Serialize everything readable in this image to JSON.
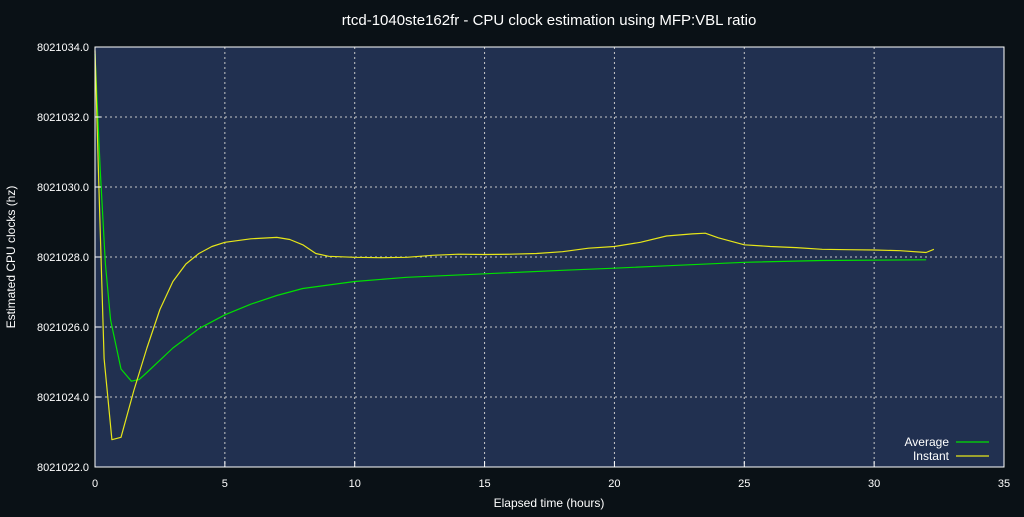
{
  "chart_data": {
    "type": "line",
    "title": "rtcd-1040ste162fr - CPU clock estimation using MFP:VBL ratio",
    "xlabel": "Elapsed time (hours)",
    "ylabel": "Estimated CPU clocks (hz)",
    "xlim": [
      0,
      35
    ],
    "ylim": [
      8021022.0,
      8021034.0
    ],
    "xticks": [
      0,
      5,
      10,
      15,
      20,
      25,
      30,
      35
    ],
    "xtick_labels": [
      "0",
      "5",
      "10",
      "15",
      "20",
      "25",
      "30",
      "35"
    ],
    "yticks": [
      8021022.0,
      8021024.0,
      8021026.0,
      8021028.0,
      8021030.0,
      8021032.0,
      8021034.0
    ],
    "ytick_labels": [
      "8021022.0",
      "8021024.0",
      "8021026.0",
      "8021028.0",
      "8021030.0",
      "8021032.0",
      "8021034.0"
    ],
    "grid": true,
    "legend_position": "bottom-right",
    "series": [
      {
        "name": "Average",
        "color": "#00e000",
        "points": [
          [
            0.0,
            8021033.8
          ],
          [
            0.2,
            8021030.5
          ],
          [
            0.4,
            8021027.8
          ],
          [
            0.6,
            8021026.2
          ],
          [
            1.0,
            8021024.8
          ],
          [
            1.4,
            8021024.45
          ],
          [
            1.7,
            8021024.5
          ],
          [
            2.0,
            8021024.7
          ],
          [
            3.0,
            8021025.4
          ],
          [
            4.0,
            8021025.95
          ],
          [
            5.0,
            8021026.35
          ],
          [
            6.0,
            8021026.65
          ],
          [
            7.0,
            8021026.9
          ],
          [
            8.0,
            8021027.1
          ],
          [
            9.0,
            8021027.2
          ],
          [
            10.0,
            8021027.3
          ],
          [
            12.0,
            8021027.42
          ],
          [
            15.0,
            8021027.52
          ],
          [
            18.0,
            8021027.62
          ],
          [
            20.0,
            8021027.68
          ],
          [
            22.0,
            8021027.75
          ],
          [
            25.0,
            8021027.85
          ],
          [
            28.0,
            8021027.9
          ],
          [
            32.0,
            8021027.92
          ]
        ]
      },
      {
        "name": "Instant",
        "color": "#e6e619",
        "points": [
          [
            0.0,
            8021033.9
          ],
          [
            0.15,
            8021030.0
          ],
          [
            0.35,
            8021025.1
          ],
          [
            0.65,
            8021022.78
          ],
          [
            1.0,
            8021022.85
          ],
          [
            1.5,
            8021024.2
          ],
          [
            2.0,
            8021025.4
          ],
          [
            2.5,
            8021026.5
          ],
          [
            3.0,
            8021027.3
          ],
          [
            3.5,
            8021027.8
          ],
          [
            4.0,
            8021028.1
          ],
          [
            4.5,
            8021028.3
          ],
          [
            5.0,
            8021028.42
          ],
          [
            6.0,
            8021028.52
          ],
          [
            7.0,
            8021028.56
          ],
          [
            7.5,
            8021028.5
          ],
          [
            8.0,
            8021028.35
          ],
          [
            8.5,
            8021028.1
          ],
          [
            9.0,
            8021028.02
          ],
          [
            10.0,
            8021027.99
          ],
          [
            11.0,
            8021027.98
          ],
          [
            12.0,
            8021027.99
          ],
          [
            13.0,
            8021028.05
          ],
          [
            14.0,
            8021028.08
          ],
          [
            15.0,
            8021028.07
          ],
          [
            16.0,
            8021028.08
          ],
          [
            17.0,
            8021028.1
          ],
          [
            18.0,
            8021028.15
          ],
          [
            19.0,
            8021028.25
          ],
          [
            20.0,
            8021028.3
          ],
          [
            21.0,
            8021028.42
          ],
          [
            22.0,
            8021028.6
          ],
          [
            23.0,
            8021028.66
          ],
          [
            23.5,
            8021028.68
          ],
          [
            24.0,
            8021028.55
          ],
          [
            25.0,
            8021028.35
          ],
          [
            26.0,
            8021028.3
          ],
          [
            27.0,
            8021028.27
          ],
          [
            28.0,
            8021028.22
          ],
          [
            29.0,
            8021028.21
          ],
          [
            30.0,
            8021028.2
          ],
          [
            31.0,
            8021028.18
          ],
          [
            32.0,
            8021028.13
          ],
          [
            32.3,
            8021028.22
          ]
        ]
      }
    ]
  }
}
